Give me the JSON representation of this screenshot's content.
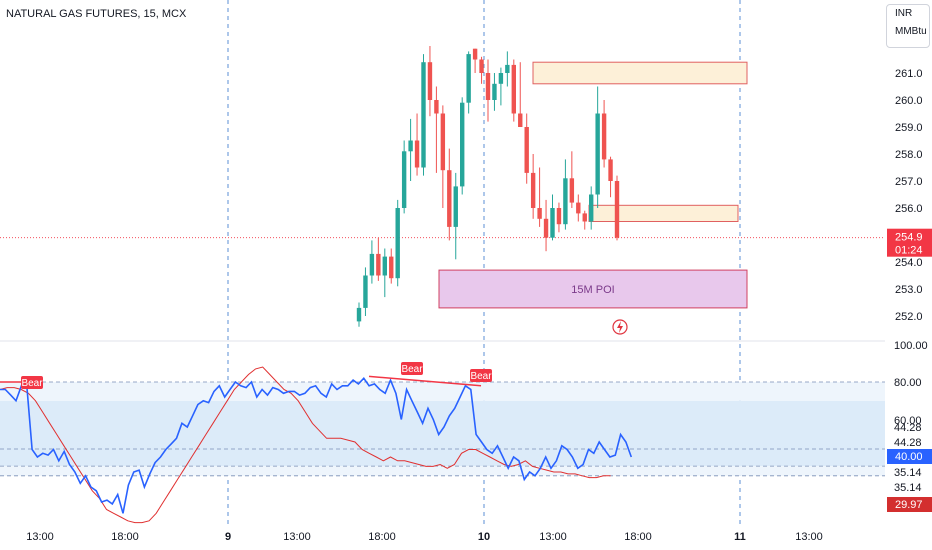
{
  "header": {
    "title": "NATURAL GAS FUTURES, 15, MCX"
  },
  "currency_menu": {
    "currency": "INR",
    "unit": "MMBtu"
  },
  "price_axis": {
    "ticks": [
      "261.0",
      "260.0",
      "259.0",
      "258.0",
      "257.0",
      "256.0",
      "254.0",
      "253.0",
      "252.0"
    ],
    "last_price": "254.9",
    "countdown": "01:24",
    "last_color": "#f23645"
  },
  "osc_axis": {
    "ticks": [
      "100.00",
      "80.00",
      "60.00",
      "44.28",
      "44.28",
      "35.14",
      "35.14"
    ],
    "current_blue": "40.00",
    "current_red": "29.97"
  },
  "time_axis": {
    "labels": [
      "13:00",
      "18:00",
      "9",
      "13:00",
      "18:00",
      "10",
      "13:00",
      "18:00",
      "11",
      "13:00"
    ]
  },
  "zones": {
    "poi_label": "15M POI"
  },
  "colors": {
    "up": "#26a69a",
    "down": "#ef5350",
    "rsi": "#2962ff",
    "signal": "#e03030",
    "bear": "#f23645",
    "poi_fill": "#e8c8ec",
    "supply_fill": "#fdf0d8"
  },
  "chart_data": [
    {
      "type": "candlestick",
      "title": "NATURAL GAS FUTURES, 15, MCX",
      "y_unit": "INR/MMBtu",
      "ylim": [
        251.6,
        261.9
      ],
      "candles": [
        {
          "x": "18:30",
          "o": 251.8,
          "h": 252.5,
          "l": 251.6,
          "c": 252.3
        },
        {
          "x": "18:45",
          "o": 252.3,
          "h": 253.8,
          "l": 252.0,
          "c": 253.5
        },
        {
          "x": "19:00",
          "o": 253.5,
          "h": 254.8,
          "l": 253.2,
          "c": 254.3
        },
        {
          "x": "19:15",
          "o": 254.3,
          "h": 254.9,
          "l": 253.3,
          "c": 253.5
        },
        {
          "x": "19:30",
          "o": 253.5,
          "h": 254.5,
          "l": 252.7,
          "c": 254.2
        },
        {
          "x": "19:45",
          "o": 254.2,
          "h": 254.5,
          "l": 253.2,
          "c": 253.4
        },
        {
          "x": "20:00",
          "o": 253.4,
          "h": 256.3,
          "l": 253.1,
          "c": 256.0
        },
        {
          "x": "20:15",
          "o": 256.0,
          "h": 258.5,
          "l": 255.8,
          "c": 258.1
        },
        {
          "x": "20:30",
          "o": 258.1,
          "h": 259.3,
          "l": 257.0,
          "c": 258.5
        },
        {
          "x": "20:45",
          "o": 258.5,
          "h": 259.5,
          "l": 257.2,
          "c": 257.5
        },
        {
          "x": "21:00",
          "o": 257.5,
          "h": 261.7,
          "l": 257.2,
          "c": 261.4
        },
        {
          "x": "21:15",
          "o": 261.4,
          "h": 262.0,
          "l": 259.4,
          "c": 260.0
        },
        {
          "x": "21:30",
          "o": 260.0,
          "h": 260.5,
          "l": 257.3,
          "c": 259.5
        },
        {
          "x": "21:45",
          "o": 259.5,
          "h": 259.8,
          "l": 256.0,
          "c": 257.4
        },
        {
          "x": "22:00",
          "o": 257.4,
          "h": 258.2,
          "l": 254.8,
          "c": 255.3
        },
        {
          "x": "22:15",
          "o": 255.3,
          "h": 257.3,
          "l": 254.1,
          "c": 256.8
        },
        {
          "x": "22:30",
          "o": 256.8,
          "h": 260.1,
          "l": 256.5,
          "c": 259.9
        },
        {
          "x": "22:45",
          "o": 259.9,
          "h": 261.8,
          "l": 259.5,
          "c": 261.7
        },
        {
          "x": "10 09:00",
          "o": 261.9,
          "h": 261.9,
          "l": 261.0,
          "c": 261.5
        },
        {
          "x": "09:15",
          "o": 261.5,
          "h": 261.6,
          "l": 260.6,
          "c": 261.0
        },
        {
          "x": "09:30",
          "o": 261.0,
          "h": 261.5,
          "l": 259.2,
          "c": 260.0
        },
        {
          "x": "09:45",
          "o": 260.0,
          "h": 261.0,
          "l": 259.6,
          "c": 260.6
        },
        {
          "x": "10:00",
          "o": 260.6,
          "h": 261.2,
          "l": 259.8,
          "c": 261.0
        },
        {
          "x": "10:15",
          "o": 261.0,
          "h": 261.8,
          "l": 260.5,
          "c": 261.3
        },
        {
          "x": "10:30",
          "o": 261.3,
          "h": 261.5,
          "l": 259.2,
          "c": 259.5
        },
        {
          "x": "10:45",
          "o": 259.5,
          "h": 261.4,
          "l": 259.0,
          "c": 259.0
        },
        {
          "x": "11:00",
          "o": 259.0,
          "h": 259.5,
          "l": 256.9,
          "c": 257.3
        },
        {
          "x": "11:15",
          "o": 257.3,
          "h": 258.0,
          "l": 255.6,
          "c": 256.0
        },
        {
          "x": "11:30",
          "o": 256.0,
          "h": 257.5,
          "l": 255.3,
          "c": 255.6
        },
        {
          "x": "11:45",
          "o": 255.6,
          "h": 256.3,
          "l": 254.4,
          "c": 254.9
        },
        {
          "x": "12:00",
          "o": 254.9,
          "h": 256.5,
          "l": 254.8,
          "c": 256.0
        },
        {
          "x": "12:15",
          "o": 256.0,
          "h": 256.2,
          "l": 255.1,
          "c": 255.4
        },
        {
          "x": "12:30",
          "o": 255.4,
          "h": 257.8,
          "l": 255.2,
          "c": 257.1
        },
        {
          "x": "12:45",
          "o": 257.1,
          "h": 258.1,
          "l": 256.0,
          "c": 256.2
        },
        {
          "x": "13:00",
          "o": 256.2,
          "h": 256.5,
          "l": 255.5,
          "c": 255.8
        },
        {
          "x": "13:15",
          "o": 255.8,
          "h": 255.9,
          "l": 255.2,
          "c": 255.5
        },
        {
          "x": "13:30",
          "o": 255.5,
          "h": 256.8,
          "l": 255.2,
          "c": 256.5
        },
        {
          "x": "13:45",
          "o": 256.5,
          "h": 260.5,
          "l": 256.0,
          "c": 259.5
        },
        {
          "x": "14:00",
          "o": 259.5,
          "h": 260.0,
          "l": 257.5,
          "c": 257.8
        },
        {
          "x": "14:15",
          "o": 257.8,
          "h": 257.9,
          "l": 256.4,
          "c": 257.0
        },
        {
          "x": "14:30",
          "o": 257.0,
          "h": 257.2,
          "l": 254.8,
          "c": 254.9
        }
      ],
      "zones": [
        {
          "label": "",
          "from_time": "10 10:15",
          "to_time": "11 00:45",
          "y_low": 260.6,
          "y_high": 261.4
        },
        {
          "label": "",
          "from_time": "10 13:30",
          "to_time": "10 22:30",
          "y_low": 255.5,
          "y_high": 256.1
        },
        {
          "label": "15M POI",
          "from_time": "9 21:30",
          "to_time": "11 00:45",
          "y_low": 252.3,
          "y_high": 253.7
        }
      ]
    },
    {
      "type": "line",
      "ylim": [
        0,
        100
      ],
      "bands": {
        "upper": 80.0,
        "middle_upper": 70.0,
        "middle": 44.28,
        "lower": 35.14,
        "floor": 29.97
      },
      "series": [
        {
          "name": "",
          "color": "#2962ff",
          "values": [
            76,
            76,
            73,
            70,
            78,
            78,
            44,
            40,
            42,
            41,
            44,
            38,
            43,
            36,
            32,
            26,
            30,
            24,
            22,
            16,
            17,
            15,
            20,
            10,
            25,
            32,
            33,
            24,
            31,
            37,
            40,
            44,
            47,
            50,
            58,
            56,
            62,
            68,
            70,
            69,
            75,
            78,
            72,
            76,
            80,
            78,
            77,
            80,
            72,
            76,
            73,
            77,
            76,
            74,
            75,
            75,
            73,
            74,
            77,
            78,
            74,
            72,
            79,
            76,
            78,
            78,
            81,
            79,
            82,
            78,
            79,
            76,
            74,
            81,
            74,
            60,
            76,
            70,
            64,
            58,
            66,
            60,
            52,
            56,
            62,
            66,
            72,
            78,
            76,
            52,
            48,
            44,
            42,
            46,
            40,
            34,
            40,
            38,
            28,
            32,
            30,
            34,
            40,
            34,
            38,
            46,
            44,
            40,
            34,
            36,
            44,
            42,
            48,
            44,
            40,
            41,
            52,
            48,
            40
          ]
        },
        {
          "name": "",
          "color": "#e03030",
          "values": [
            76,
            77,
            77,
            76,
            74,
            70,
            64,
            58,
            52,
            46,
            40,
            34,
            28,
            22,
            18,
            12,
            10,
            8,
            6,
            5,
            5,
            6,
            10,
            16,
            22,
            28,
            34,
            40,
            46,
            52,
            58,
            64,
            70,
            76,
            80,
            84,
            87,
            88,
            84,
            80,
            76,
            74,
            70,
            64,
            58,
            54,
            50,
            50,
            50,
            49,
            48,
            44,
            42,
            40,
            38,
            40,
            38,
            38,
            37,
            36,
            35,
            35,
            36,
            34,
            36,
            42,
            44,
            44,
            42,
            40,
            38,
            36,
            35,
            36,
            38,
            35,
            34,
            33,
            32,
            32,
            31,
            31,
            30,
            29,
            29,
            30,
            30
          ]
        }
      ],
      "signals": [
        {
          "label": "Bear"
        },
        {
          "label": "Bear"
        },
        {
          "label": "Bear"
        }
      ]
    }
  ]
}
